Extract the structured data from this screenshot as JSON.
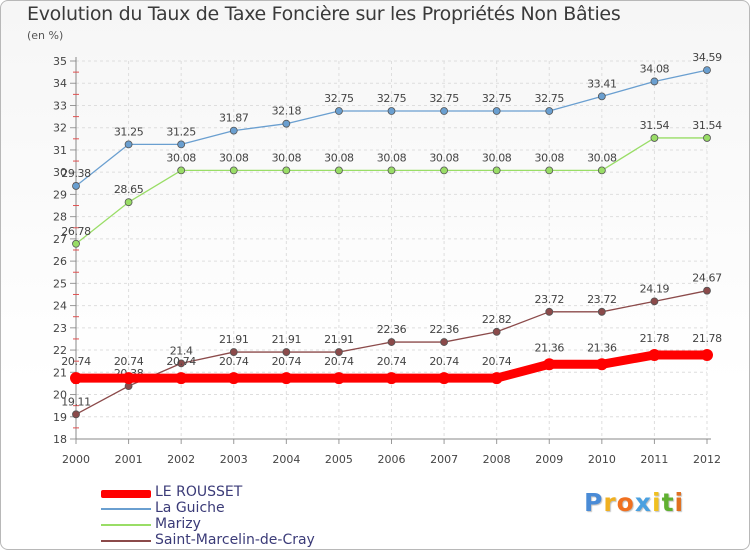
{
  "title": "Evolution du Taux de Taxe Foncière sur les Propriétés Non Bâties",
  "unit": "(en %)",
  "logo": {
    "letters": [
      "P",
      "r",
      "o",
      "x",
      "i",
      "t",
      "i"
    ],
    "colors": [
      "#4a8bd6",
      "#f0b020",
      "#f07020",
      "#4aa0e0",
      "#f0c020",
      "#60b030",
      "#e07020"
    ]
  },
  "chart_data": {
    "type": "line",
    "title": "Evolution du Taux de Taxe Foncière sur les Propriétés Non Bâties",
    "ylabel": "(en %)",
    "xlabel": "",
    "ylim": [
      18,
      35
    ],
    "yticks": [
      18,
      19,
      20,
      21,
      22,
      23,
      24,
      25,
      26,
      27,
      28,
      29,
      30,
      31,
      32,
      33,
      34,
      35
    ],
    "grid": true,
    "legend_position": "bottom-left",
    "categories": [
      "2000",
      "2001",
      "2002",
      "2003",
      "2004",
      "2005",
      "2006",
      "2007",
      "2008",
      "2009",
      "2010",
      "2011",
      "2012"
    ],
    "series": [
      {
        "name": "LE ROUSSET",
        "color": "#ff0000",
        "values": [
          20.74,
          20.74,
          20.74,
          20.74,
          20.74,
          20.74,
          20.74,
          20.74,
          20.74,
          21.36,
          21.36,
          21.78,
          21.78
        ],
        "labels": [
          "20.74",
          "20.74",
          "20.74",
          "20.74",
          "20.74",
          "20.74",
          "20.74",
          "20.74",
          "20.74",
          "21.36",
          "21.36",
          "21.78",
          "21.78"
        ]
      },
      {
        "name": "La Guiche",
        "color": "#6a9fd0",
        "values": [
          29.38,
          31.25,
          31.25,
          31.87,
          32.18,
          32.75,
          32.75,
          32.75,
          32.75,
          32.75,
          33.41,
          34.08,
          34.59
        ],
        "labels": [
          "29.38",
          "31.25",
          "31.25",
          "31.87",
          "32.18",
          "32.75",
          "32.75",
          "32.75",
          "32.75",
          "32.75",
          "33.41",
          "34.08",
          "34.59"
        ]
      },
      {
        "name": "Marizy",
        "color": "#99dd66",
        "values": [
          26.78,
          28.65,
          30.08,
          30.08,
          30.08,
          30.08,
          30.08,
          30.08,
          30.08,
          30.08,
          30.08,
          31.54,
          31.54
        ],
        "labels": [
          "26.78",
          "28.65",
          "30.08",
          "30.08",
          "30.08",
          "30.08",
          "30.08",
          "30.08",
          "30.08",
          "30.08",
          "30.08",
          "31.54",
          "31.54"
        ]
      },
      {
        "name": "Saint-Marcelin-de-Cray",
        "color": "#8b4a4a",
        "values": [
          19.11,
          20.38,
          21.4,
          21.91,
          21.91,
          21.91,
          22.36,
          22.36,
          22.82,
          23.72,
          23.72,
          24.19,
          24.67
        ],
        "labels": [
          "19.11",
          "20.38",
          "21.4",
          "21.91",
          "21.91",
          "21.91",
          "22.36",
          "22.36",
          "22.82",
          "23.72",
          "23.72",
          "24.19",
          "24.67"
        ]
      }
    ]
  }
}
